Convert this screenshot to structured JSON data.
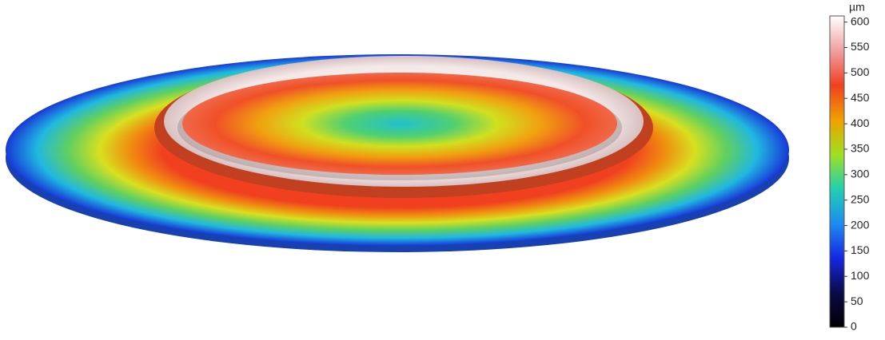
{
  "chart_data": {
    "type": "surface",
    "colorbar_label": "µm",
    "ylim": [
      0,
      612
    ],
    "yticks": [
      0,
      50,
      100,
      150,
      200,
      250,
      300,
      350,
      400,
      450,
      500,
      550,
      600
    ],
    "colors": [
      "#000000",
      "#0a0a48",
      "#1428e0",
      "#1e8cf0",
      "#20d0b0",
      "#a0e020",
      "#f0a000",
      "#f04020",
      "#f0a0a0",
      "#ffffff"
    ]
  }
}
